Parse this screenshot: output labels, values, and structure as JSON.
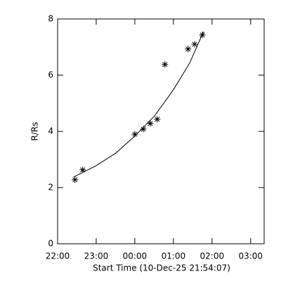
{
  "chart_data": {
    "type": "scatter",
    "xlabel": "Start Time (10-Dec-25 21:54:07)",
    "ylabel": "R/Rs",
    "xlim": [
      22,
      27.35
    ],
    "xticks": [
      {
        "value": 22,
        "label": "22:00"
      },
      {
        "value": 23,
        "label": "23:00"
      },
      {
        "value": 24,
        "label": "00:00"
      },
      {
        "value": 25,
        "label": "01:00"
      },
      {
        "value": 26,
        "label": "02:00"
      },
      {
        "value": 27,
        "label": "03:00"
      }
    ],
    "ylim": [
      0,
      8
    ],
    "yticks": [
      0,
      2,
      4,
      6,
      8
    ],
    "color": "#000000",
    "series": [
      {
        "marker": "asterisk",
        "x": [
          22.45,
          22.65,
          24.0,
          24.22,
          24.4,
          24.58,
          24.78,
          25.38,
          25.55,
          25.75
        ],
        "values": [
          2.28,
          2.63,
          3.9,
          4.08,
          4.28,
          4.43,
          6.38,
          6.93,
          7.1,
          7.43
        ]
      },
      {
        "marker": "line",
        "x": [
          22.42,
          23.0,
          23.51,
          24.0,
          24.51,
          25.0,
          25.42,
          25.78
        ],
        "values": [
          2.38,
          2.78,
          3.23,
          3.83,
          4.55,
          5.48,
          6.43,
          7.55
        ]
      }
    ]
  }
}
